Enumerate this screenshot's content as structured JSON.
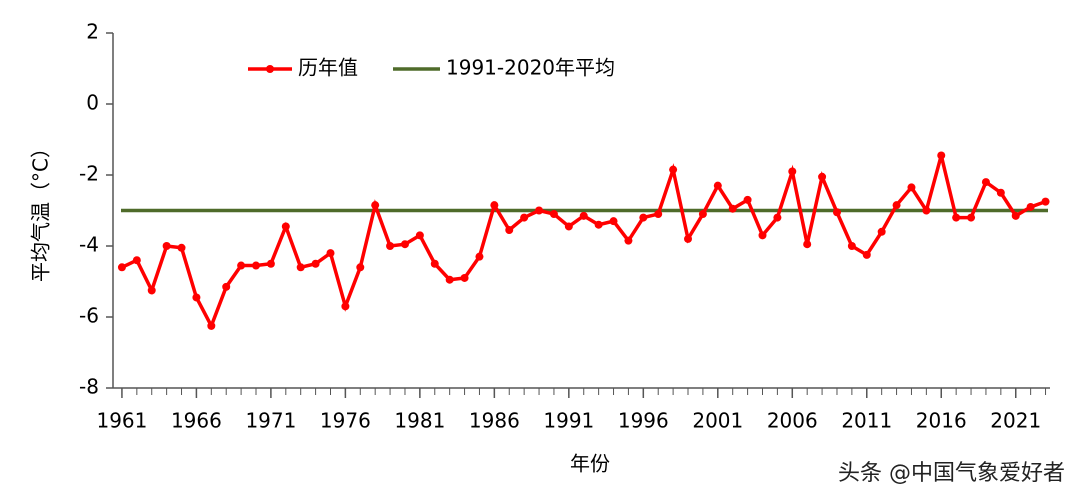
{
  "chart_data": {
    "type": "line",
    "y_label": "平均气温（°C）",
    "x_label": "年份",
    "x": [
      1961,
      1962,
      1963,
      1964,
      1965,
      1966,
      1967,
      1968,
      1969,
      1970,
      1971,
      1972,
      1973,
      1974,
      1975,
      1976,
      1977,
      1978,
      1979,
      1980,
      1981,
      1982,
      1983,
      1984,
      1985,
      1986,
      1987,
      1988,
      1989,
      1990,
      1991,
      1992,
      1993,
      1994,
      1995,
      1996,
      1997,
      1998,
      1999,
      2000,
      2001,
      2002,
      2003,
      2004,
      2005,
      2006,
      2007,
      2008,
      2009,
      2010,
      2011,
      2012,
      2013,
      2014,
      2015,
      2016,
      2017,
      2018,
      2019,
      2020,
      2021,
      2022,
      2023
    ],
    "series": [
      {
        "name": "历年值",
        "color": "#ff0000",
        "values": [
          -4.6,
          -4.4,
          -5.25,
          -4.0,
          -4.05,
          -5.45,
          -6.25,
          -5.15,
          -4.55,
          -4.55,
          -4.5,
          -3.45,
          -4.6,
          -4.5,
          -4.2,
          -5.7,
          -4.6,
          -2.85,
          -4.0,
          -3.95,
          -3.7,
          -4.5,
          -4.95,
          -4.9,
          -4.3,
          -2.85,
          -3.55,
          -3.2,
          -3.0,
          -3.1,
          -3.45,
          -3.15,
          -3.4,
          -3.3,
          -3.85,
          -3.2,
          -3.1,
          -1.85,
          -3.8,
          -3.1,
          -2.3,
          -2.95,
          -2.7,
          -3.7,
          -3.2,
          -1.9,
          -3.95,
          -2.05,
          -3.05,
          -4.0,
          -4.25,
          -3.6,
          -2.85,
          -2.35,
          -3.0,
          -1.45,
          -3.2,
          -3.2,
          -2.2,
          -2.5,
          -3.15,
          -2.9,
          -2.75
        ]
      }
    ],
    "reference_line": {
      "name": "1991-2020年平均",
      "value": -3.0,
      "color": "#4f6b2a"
    },
    "xlim": [
      1960.4,
      2023.3
    ],
    "xticks": [
      1961,
      1966,
      1971,
      1976,
      1981,
      1986,
      1991,
      1996,
      2001,
      2006,
      2011,
      2016,
      2021
    ],
    "ylim": [
      -8,
      2
    ],
    "yticks": [
      -8,
      -6,
      -4,
      -2,
      0,
      2
    ],
    "watermark": "头条 @中国气象爱好者"
  }
}
